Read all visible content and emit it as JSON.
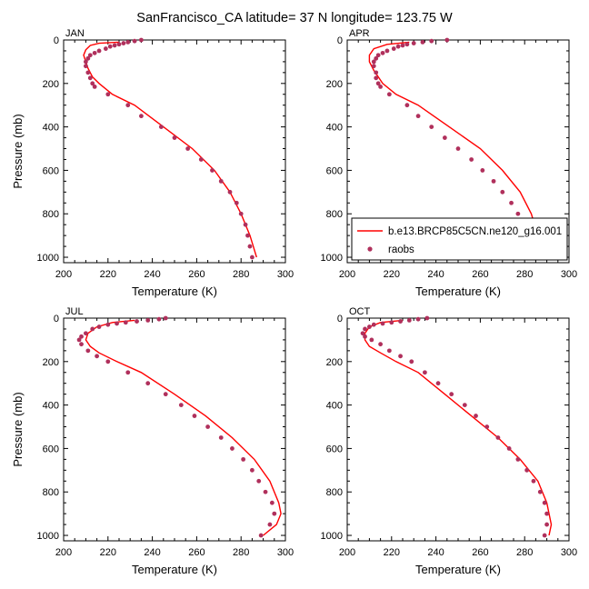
{
  "title": "SanFrancisco_CA  latitude= 37 N longitude= 123.75 W",
  "colors": {
    "model": "#ff0000",
    "obs": "#b0305c",
    "axis": "#000000"
  },
  "legend": {
    "panel": "APR",
    "placement": "bottom-right",
    "items": [
      {
        "label": "b.e13.BRCP85C5CN.ne120_g16.001",
        "marker": "line"
      },
      {
        "label": "raobs",
        "marker": "dot"
      }
    ]
  },
  "chart_data": [
    {
      "type": "line",
      "panel_label": "JAN",
      "xlabel": "Temperature (K)",
      "ylabel": "Pressure (mb)",
      "xlim": [
        200,
        300
      ],
      "ylim": [
        0,
        1025
      ],
      "y_reversed": true,
      "xticks": [
        200,
        220,
        240,
        260,
        280,
        300
      ],
      "yticks": [
        0,
        200,
        400,
        600,
        800,
        1000
      ],
      "series": [
        {
          "name": "b.e13.BRCP85C5CN.ne120_g16.001",
          "kind": "line",
          "x": [
            225,
            216,
            212,
            210,
            209,
            210,
            211,
            212,
            213,
            216,
            222,
            232,
            245,
            258,
            268,
            275,
            280,
            284,
            287
          ],
          "y": [
            10,
            15,
            25,
            45,
            70,
            100,
            130,
            150,
            170,
            200,
            250,
            300,
            400,
            500,
            600,
            700,
            800,
            900,
            1000
          ]
        },
        {
          "name": "raobs",
          "kind": "scatter",
          "x": [
            235,
            232,
            229,
            227,
            225,
            223,
            221,
            219,
            216,
            214,
            212,
            211,
            210,
            210,
            211,
            212,
            213,
            214,
            220,
            229,
            235,
            244,
            250,
            256,
            262,
            267,
            271,
            275,
            278,
            280,
            282,
            283,
            284,
            285
          ],
          "y": [
            0,
            5,
            10,
            15,
            20,
            25,
            30,
            40,
            50,
            60,
            70,
            85,
            100,
            120,
            150,
            175,
            200,
            215,
            250,
            300,
            350,
            400,
            450,
            500,
            550,
            600,
            650,
            700,
            750,
            800,
            850,
            900,
            950,
            1000
          ]
        }
      ]
    },
    {
      "type": "line",
      "panel_label": "APR",
      "xlabel": "Temperature (K)",
      "ylabel": "",
      "xlim": [
        200,
        300
      ],
      "ylim": [
        0,
        1025
      ],
      "y_reversed": true,
      "xticks": [
        200,
        220,
        240,
        260,
        280,
        300
      ],
      "yticks": [
        0,
        200,
        400,
        600,
        800,
        1000
      ],
      "series": [
        {
          "name": "b.e13.BRCP85C5CN.ne120_g16.001",
          "kind": "line",
          "x": [
            228,
            218,
            212,
            210,
            210,
            212,
            214,
            216,
            222,
            232,
            246,
            260,
            270,
            278,
            283,
            286,
            287
          ],
          "y": [
            10,
            20,
            40,
            70,
            100,
            140,
            170,
            200,
            250,
            300,
            400,
            500,
            600,
            700,
            800,
            900,
            1000
          ]
        },
        {
          "name": "raobs",
          "kind": "scatter",
          "x": [
            245,
            238,
            234,
            230,
            227,
            225,
            223,
            221,
            218,
            216,
            214,
            213,
            212,
            212,
            213,
            213,
            214,
            215,
            219,
            227,
            232,
            238,
            244,
            250,
            256,
            261,
            266,
            270,
            274,
            277,
            280,
            282,
            284,
            286
          ],
          "y": [
            0,
            5,
            10,
            15,
            20,
            25,
            30,
            40,
            50,
            60,
            70,
            85,
            100,
            120,
            150,
            175,
            200,
            215,
            250,
            300,
            350,
            400,
            450,
            500,
            550,
            600,
            650,
            700,
            750,
            800,
            850,
            900,
            950,
            1000
          ]
        }
      ]
    },
    {
      "type": "line",
      "panel_label": "JUL",
      "xlabel": "Temperature (K)",
      "ylabel": "Pressure (mb)",
      "xlim": [
        200,
        300
      ],
      "ylim": [
        0,
        1025
      ],
      "y_reversed": true,
      "xticks": [
        200,
        220,
        240,
        260,
        280,
        300
      ],
      "yticks": [
        0,
        200,
        400,
        600,
        800,
        1000
      ],
      "series": [
        {
          "name": "b.e13.BRCP85C5CN.ne120_g16.001",
          "kind": "line",
          "x": [
            232,
            222,
            215,
            211,
            210,
            212,
            216,
            224,
            235,
            250,
            264,
            276,
            286,
            293,
            297,
            298,
            296,
            290
          ],
          "y": [
            10,
            20,
            40,
            70,
            100,
            130,
            160,
            200,
            250,
            350,
            450,
            550,
            650,
            750,
            850,
            900,
            950,
            1000
          ]
        },
        {
          "name": "raobs",
          "kind": "scatter",
          "x": [
            246,
            243,
            238,
            233,
            228,
            224,
            220,
            216,
            213,
            210,
            208,
            207,
            208,
            211,
            215,
            220,
            229,
            238,
            246,
            253,
            259,
            265,
            271,
            276,
            281,
            285,
            288,
            291,
            294,
            295,
            293,
            289
          ],
          "y": [
            0,
            5,
            10,
            15,
            20,
            25,
            30,
            40,
            50,
            70,
            85,
            100,
            120,
            150,
            175,
            200,
            250,
            300,
            350,
            400,
            450,
            500,
            550,
            600,
            650,
            700,
            750,
            800,
            850,
            900,
            950,
            1000
          ]
        }
      ]
    },
    {
      "type": "line",
      "panel_label": "OCT",
      "xlabel": "Temperature (K)",
      "ylabel": "",
      "xlim": [
        200,
        300
      ],
      "ylim": [
        0,
        1025
      ],
      "y_reversed": true,
      "xticks": [
        200,
        220,
        240,
        260,
        280,
        300
      ],
      "yticks": [
        0,
        200,
        400,
        600,
        800,
        1000
      ],
      "series": [
        {
          "name": "b.e13.BRCP85C5CN.ne120_g16.001",
          "kind": "line",
          "x": [
            225,
            215,
            210,
            208,
            208,
            210,
            215,
            222,
            232,
            244,
            256,
            268,
            278,
            286,
            290,
            292,
            291
          ],
          "y": [
            10,
            20,
            40,
            70,
            100,
            130,
            160,
            200,
            250,
            350,
            450,
            550,
            650,
            750,
            850,
            950,
            1000
          ]
        },
        {
          "name": "raobs",
          "kind": "scatter",
          "x": [
            236,
            232,
            228,
            224,
            220,
            216,
            212,
            210,
            208,
            207,
            208,
            211,
            215,
            219,
            224,
            229,
            235,
            241,
            247,
            253,
            258,
            263,
            268,
            273,
            277,
            281,
            284,
            287,
            289,
            290,
            290,
            289
          ],
          "y": [
            0,
            5,
            10,
            15,
            20,
            25,
            30,
            40,
            50,
            70,
            85,
            100,
            120,
            150,
            175,
            200,
            250,
            300,
            350,
            400,
            450,
            500,
            550,
            600,
            650,
            700,
            750,
            800,
            850,
            900,
            950,
            1000
          ]
        }
      ]
    }
  ]
}
